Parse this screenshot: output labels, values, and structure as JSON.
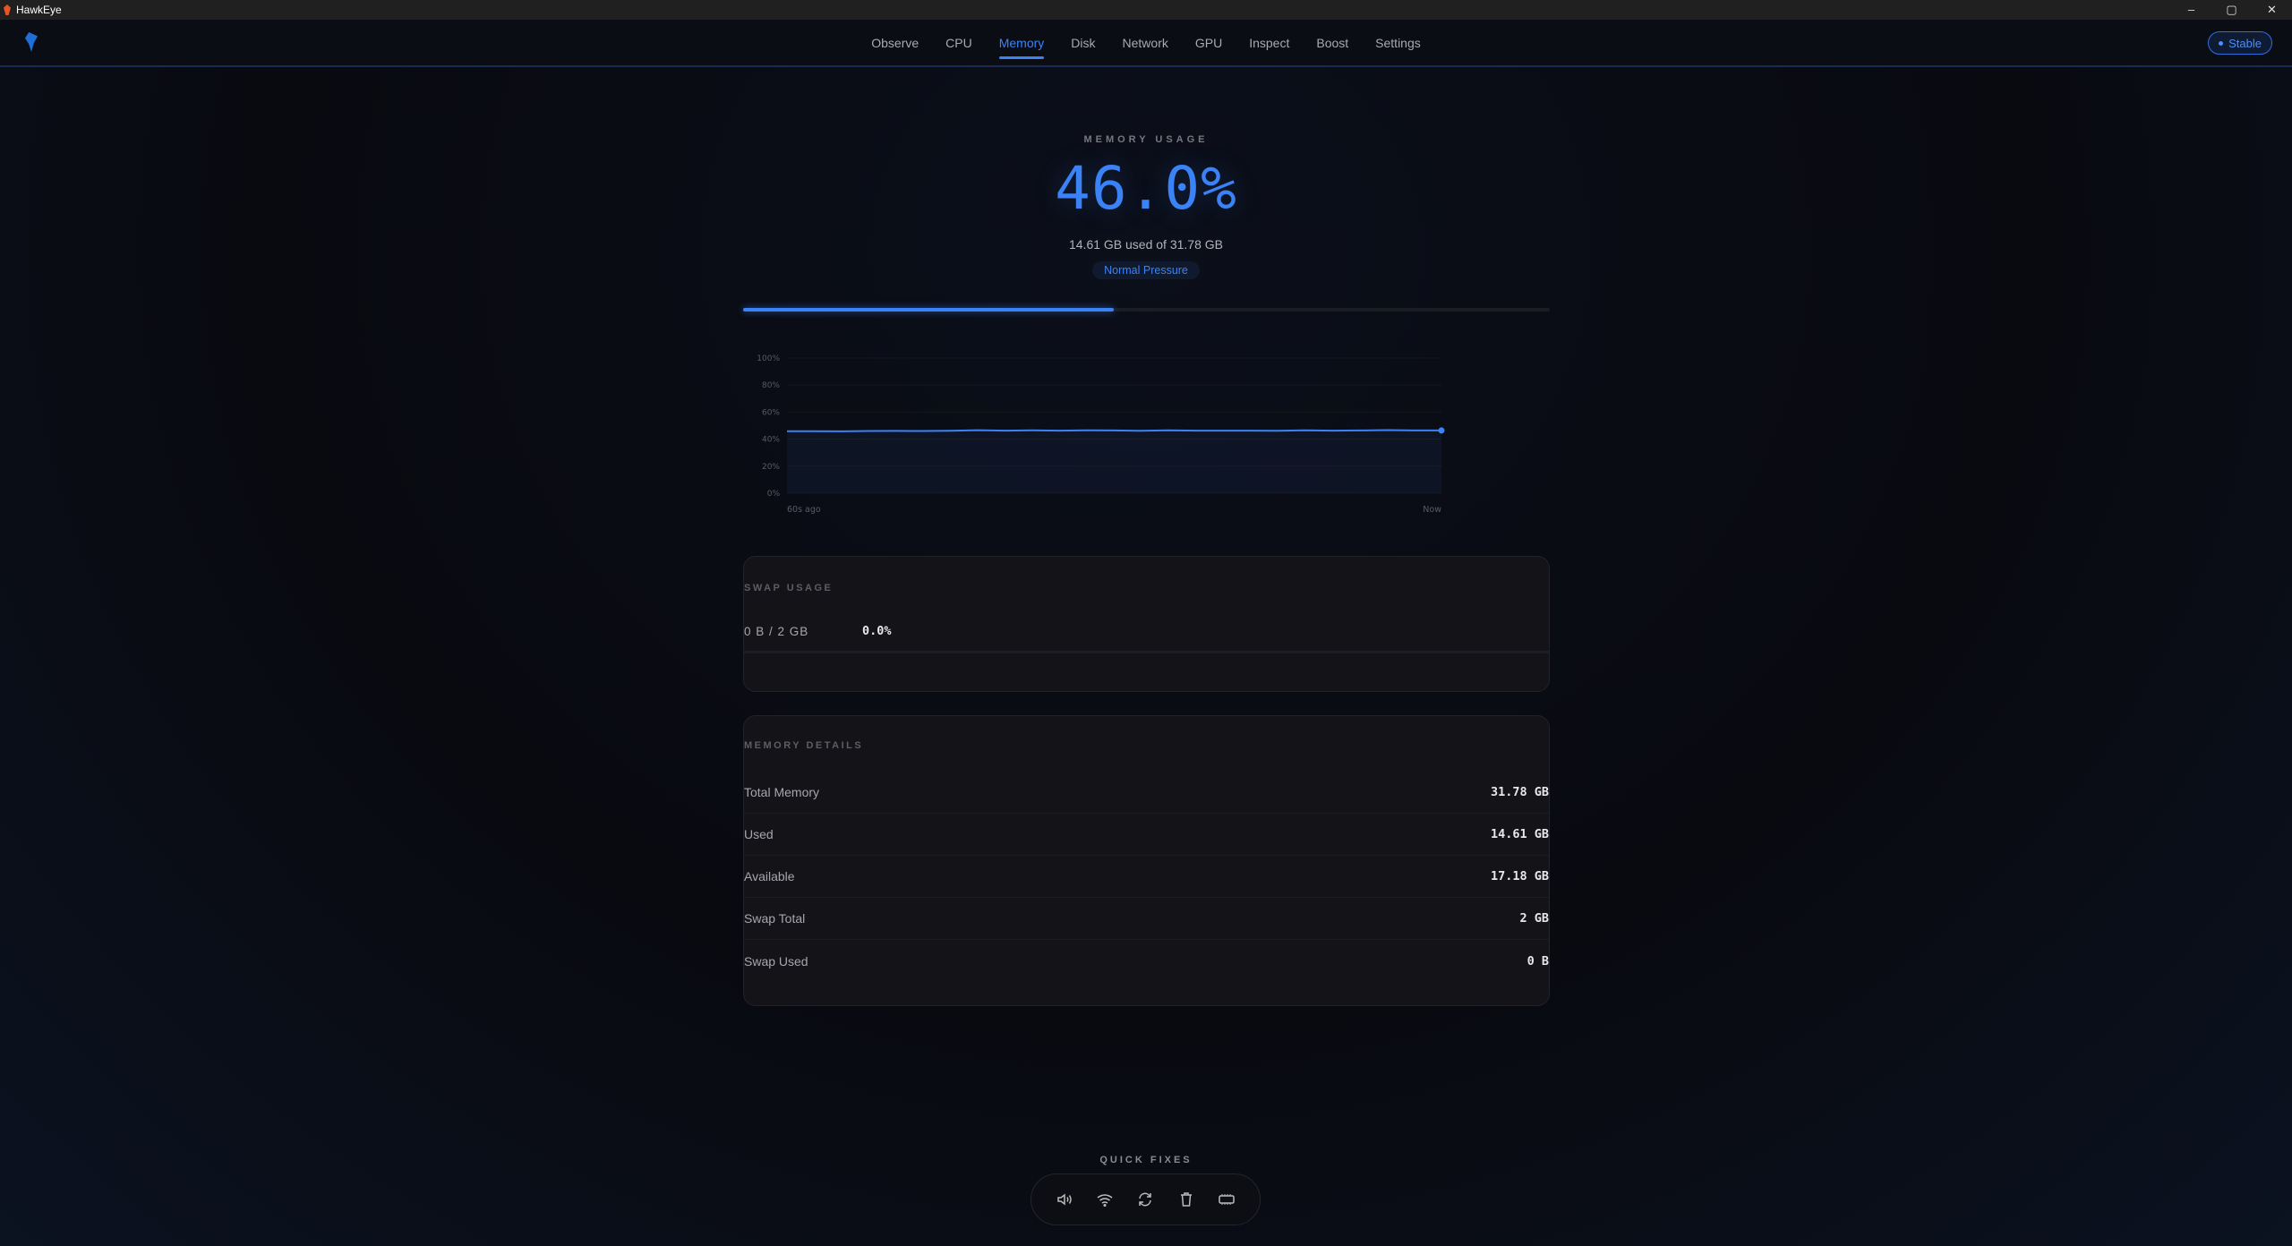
{
  "window": {
    "title": "HawkEye",
    "controls": [
      "–",
      "▢",
      "✕"
    ]
  },
  "nav": {
    "tabs": [
      "Observe",
      "CPU",
      "Memory",
      "Disk",
      "Network",
      "GPU",
      "Inspect",
      "Boost",
      "Settings"
    ],
    "active": "Memory",
    "status": "Stable"
  },
  "memory": {
    "label": "MEMORY USAGE",
    "percent": "46.0%",
    "percent_value": 46.0,
    "detail": "14.61 GB used of 31.78 GB",
    "pressure": "Normal Pressure"
  },
  "chart_data": {
    "type": "area",
    "x_labels": [
      "60s ago",
      "Now"
    ],
    "y_ticks": [
      "100%",
      "80%",
      "60%",
      "40%",
      "20%",
      "0%"
    ],
    "ylim": [
      0,
      100
    ],
    "grid": true,
    "values": [
      45.9,
      45.9,
      45.8,
      46.0,
      46.1,
      46.0,
      46.2,
      46.6,
      46.3,
      46.5,
      46.3,
      46.5,
      46.4,
      46.2,
      46.5,
      46.3,
      46.3,
      46.3,
      46.2,
      46.5,
      46.3,
      46.4,
      46.7,
      46.4,
      46.4
    ],
    "color": "#3b82f6"
  },
  "swap": {
    "title": "SWAP USAGE",
    "amount": "0 B / 2 GB",
    "percent": "0.0%"
  },
  "details": {
    "title": "MEMORY DETAILS",
    "rows": [
      {
        "label": "Total Memory",
        "value": "31.78 GB"
      },
      {
        "label": "Used",
        "value": "14.61 GB"
      },
      {
        "label": "Available",
        "value": "17.18 GB"
      },
      {
        "label": "Swap Total",
        "value": "2 GB"
      },
      {
        "label": "Swap Used",
        "value": "0 B"
      }
    ]
  },
  "quick_fixes": {
    "label": "QUICK FIXES",
    "icons": [
      "speaker-icon",
      "wifi-icon",
      "refresh-icon",
      "trash-icon",
      "memory-chip-icon"
    ]
  }
}
